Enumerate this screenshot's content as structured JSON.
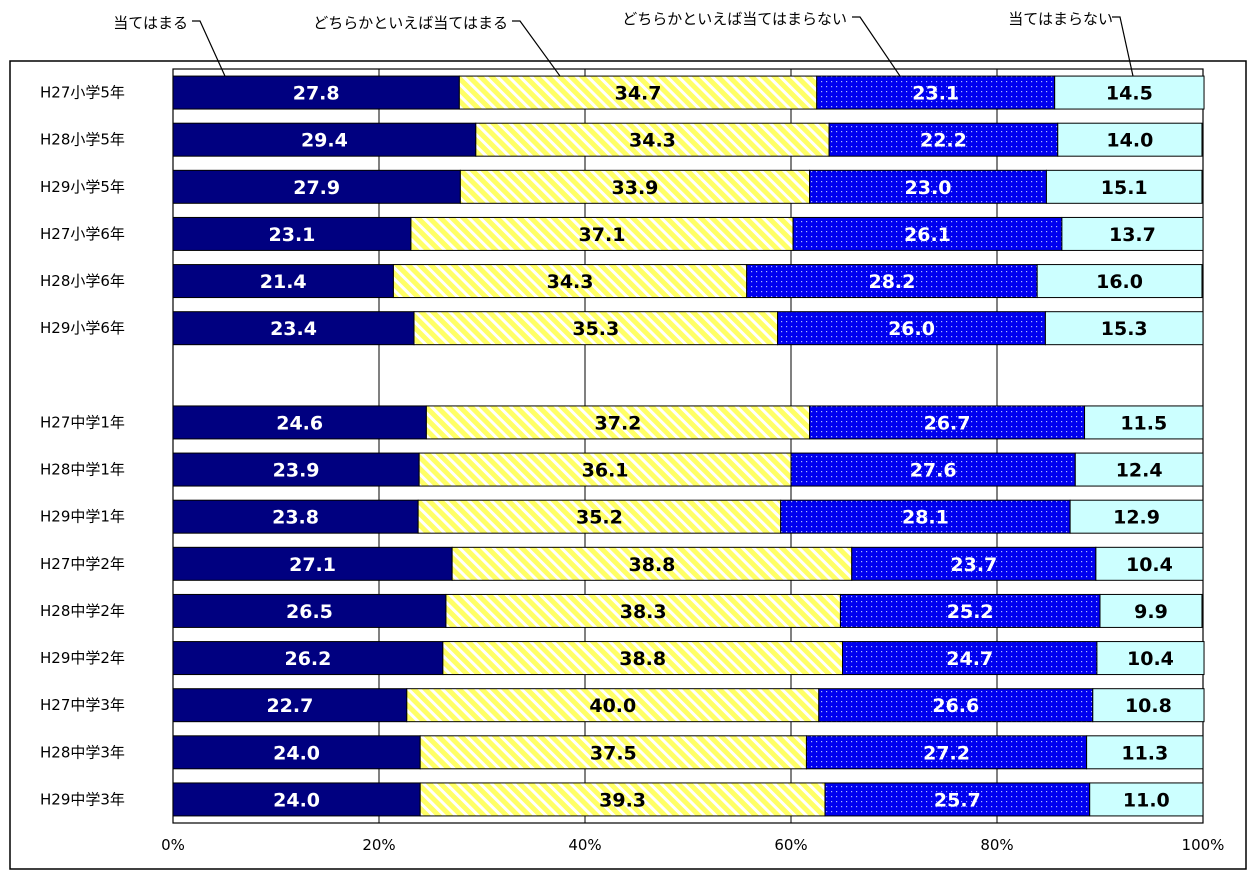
{
  "chart_data": {
    "type": "bar",
    "orientation": "horizontal",
    "stacked": "percent",
    "categories": [
      "H27小学5年",
      "H28小学5年",
      "H29小学5年",
      "H27小学6年",
      "H28小学6年",
      "H29小学6年",
      "",
      "H27中学1年",
      "H28中学1年",
      "H29中学1年",
      "H27中学2年",
      "H28中学2年",
      "H29中学2年",
      "H27中学3年",
      "H28中学3年",
      "H29中学3年"
    ],
    "series": [
      {
        "name": "当てはまる",
        "color": "#000080",
        "pattern": "solid",
        "label_color": "#ffffff",
        "values": [
          27.8,
          29.4,
          27.9,
          23.1,
          21.4,
          23.4,
          null,
          24.6,
          23.9,
          23.8,
          27.1,
          26.5,
          26.2,
          22.7,
          24.0,
          24.0
        ]
      },
      {
        "name": "どちらかといえば当てはまる",
        "color": "#ffff66",
        "pattern": "diagonal-stripes",
        "label_color": "#000000",
        "values": [
          34.7,
          34.3,
          33.9,
          37.1,
          34.3,
          35.3,
          null,
          37.2,
          36.1,
          35.2,
          38.8,
          38.3,
          38.8,
          40.0,
          37.5,
          39.3
        ]
      },
      {
        "name": "どちらかといえば当てはまらない",
        "color": "#0000ee",
        "pattern": "dotted",
        "label_color": "#ffffff",
        "values": [
          23.1,
          22.2,
          23.0,
          26.1,
          28.2,
          26.0,
          null,
          26.7,
          27.6,
          28.1,
          23.7,
          25.2,
          24.7,
          26.6,
          27.2,
          25.7
        ]
      },
      {
        "name": "当てはまらない",
        "color": "#ccffff",
        "pattern": "solid",
        "label_color": "#000000",
        "values": [
          14.5,
          14.0,
          15.1,
          13.7,
          16.0,
          15.3,
          null,
          11.5,
          12.4,
          12.9,
          10.4,
          9.9,
          10.4,
          10.8,
          11.3,
          11.0
        ]
      }
    ],
    "xticks": [
      "0%",
      "20%",
      "40%",
      "60%",
      "80%",
      "100%"
    ],
    "xlim": [
      0,
      100
    ],
    "grid": "vertical",
    "legend": "top, with leader lines to first bar",
    "title": "",
    "xlabel": "",
    "ylabel": ""
  }
}
